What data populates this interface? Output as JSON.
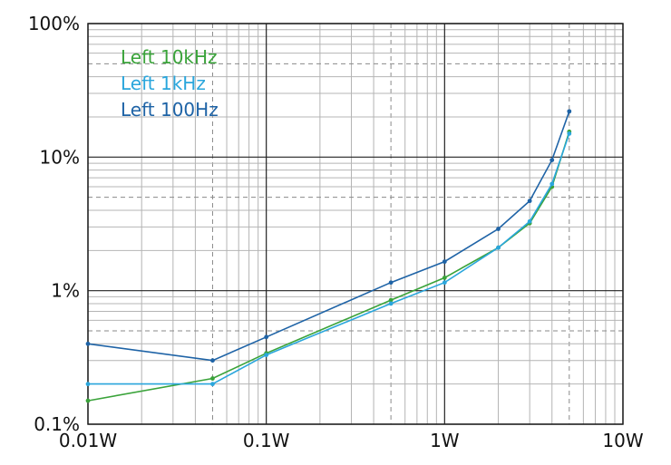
{
  "chart_data": {
    "type": "line",
    "title": "",
    "xlabel": "",
    "ylabel": "",
    "xscale": "log",
    "yscale": "log",
    "xlim": [
      0.01,
      10
    ],
    "ylim": [
      0.1,
      100
    ],
    "grid": true,
    "legend_position": "top-left",
    "x_ticks": [
      "0.01W",
      "0.1W",
      "1W",
      "10W"
    ],
    "y_ticks": [
      "0.1%",
      "1%",
      "10%",
      "100%"
    ],
    "series": [
      {
        "name": "Left 10kHz",
        "color": "#3aa33a",
        "points": [
          [
            0.01,
            0.15
          ],
          [
            0.05,
            0.22
          ],
          [
            0.1,
            0.34
          ],
          [
            0.5,
            0.85
          ],
          [
            1,
            1.25
          ],
          [
            2,
            2.1
          ],
          [
            3,
            3.2
          ],
          [
            4,
            6.0
          ],
          [
            5,
            15.5
          ]
        ]
      },
      {
        "name": "Left 1kHz",
        "color": "#2aa6dc",
        "points": [
          [
            0.01,
            0.2
          ],
          [
            0.05,
            0.2
          ],
          [
            0.1,
            0.33
          ],
          [
            0.5,
            0.8
          ],
          [
            1,
            1.15
          ],
          [
            2,
            2.1
          ],
          [
            3,
            3.3
          ],
          [
            4,
            6.3
          ],
          [
            5,
            15.0
          ]
        ]
      },
      {
        "name": "Left 100Hz",
        "color": "#1e63a6",
        "points": [
          [
            0.01,
            0.4
          ],
          [
            0.05,
            0.3
          ],
          [
            0.1,
            0.45
          ],
          [
            0.5,
            1.15
          ],
          [
            1,
            1.65
          ],
          [
            2,
            2.9
          ],
          [
            3,
            4.7
          ],
          [
            4,
            9.5
          ],
          [
            5,
            22.0
          ]
        ]
      }
    ]
  }
}
